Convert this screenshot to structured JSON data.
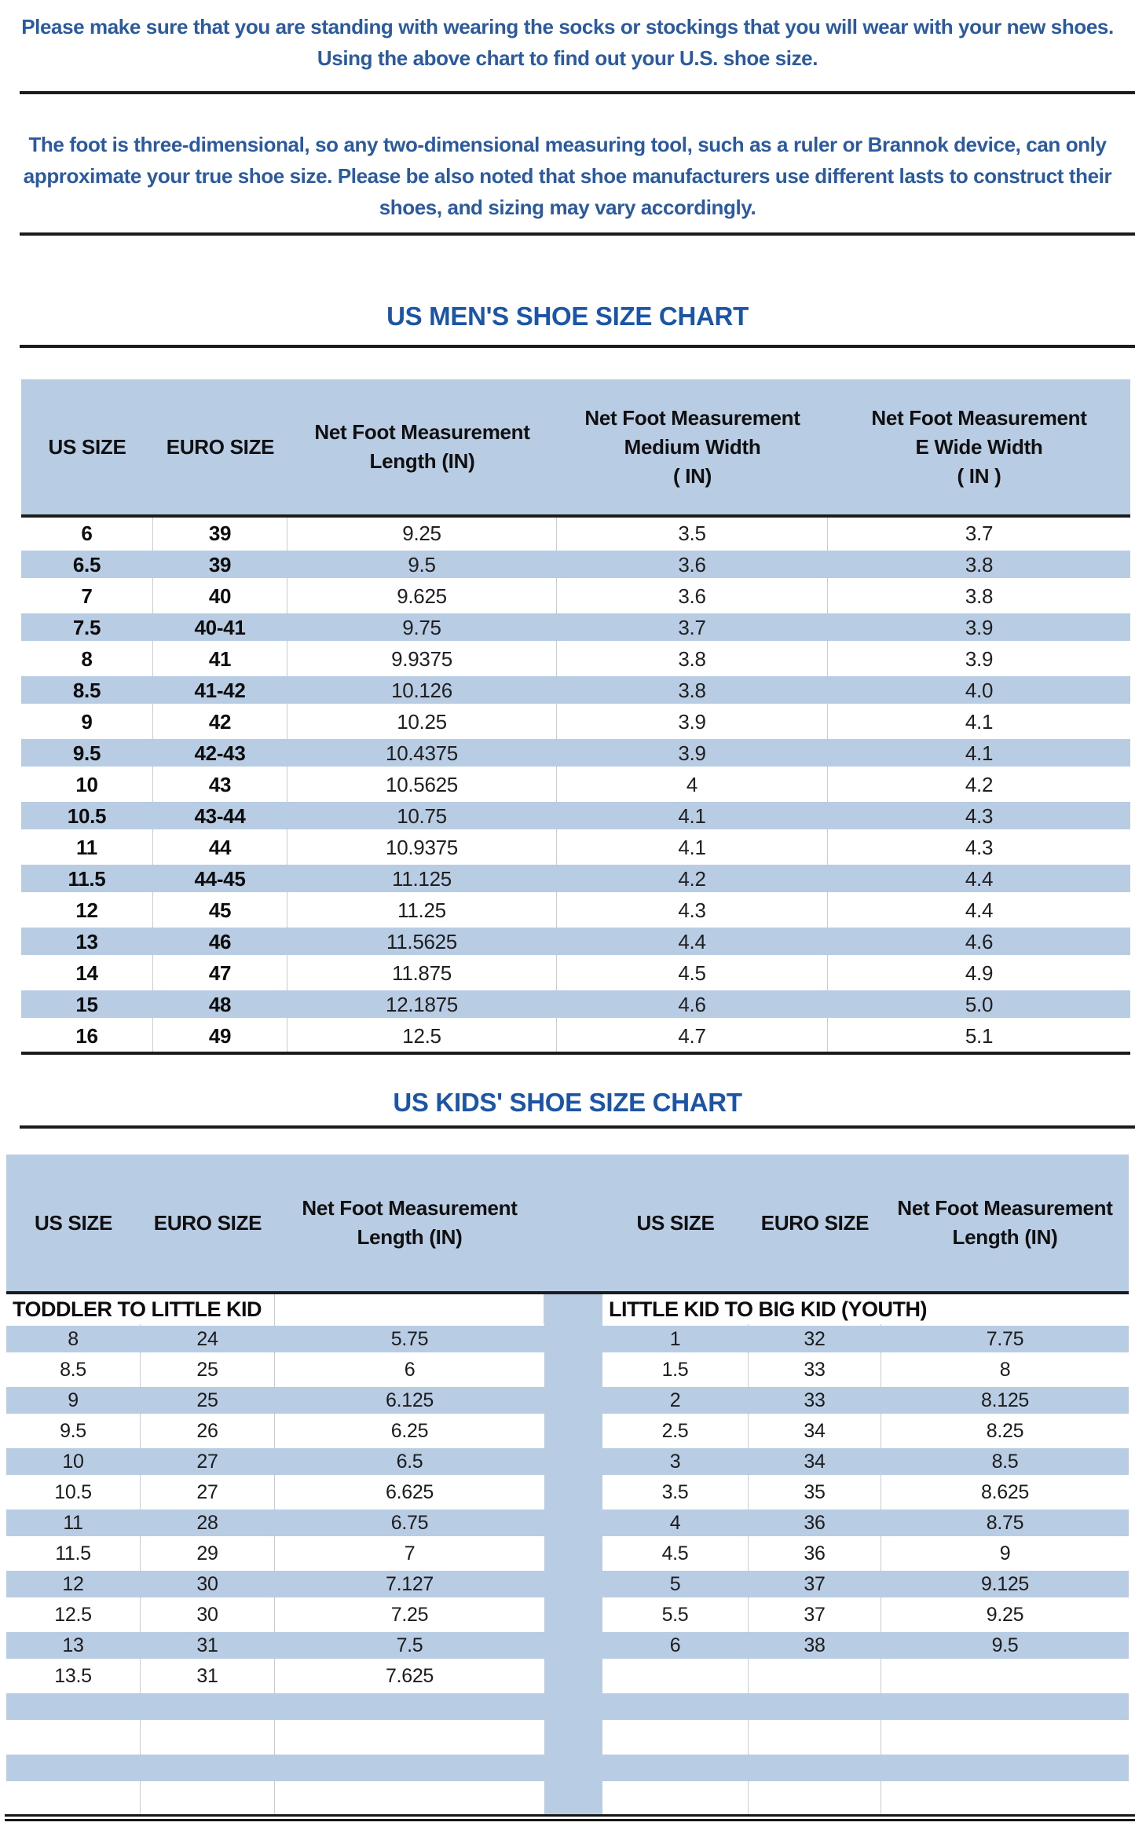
{
  "intro": {
    "para1": "Please make sure that you are standing with wearing the socks or stockings that you will wear with your new shoes.\nUsing the above chart to find out your U.S. shoe size.",
    "para2": "The foot is three-dimensional, so any two-dimensional measuring tool, such as a ruler or Brannok device, can only\napproximate your true shoe size. Please be also noted that shoe manufacturers use different lasts to construct their\nshoes, and sizing may vary accordingly."
  },
  "colors": {
    "table_fill_blue": "#b8cce4",
    "title_blue": "#1d55a6",
    "intro_text_blue": "#2b5b9e",
    "rule_dark": "#1c1c1c"
  },
  "mens_chart": {
    "title": "US MEN'S SHOE SIZE CHART",
    "headers": [
      "US SIZE",
      "EURO SIZE",
      "Net Foot Measurement\nLength (IN)",
      "Net Foot Measurement\nMedium Width\n( IN)",
      "Net Foot Measurement\nE Wide Width\n( IN )"
    ],
    "rows": [
      [
        "6",
        "39",
        "9.25",
        "3.5",
        "3.7"
      ],
      [
        "6.5",
        "39",
        "9.5",
        "3.6",
        "3.8"
      ],
      [
        "7",
        "40",
        "9.625",
        "3.6",
        "3.8"
      ],
      [
        "7.5",
        "40-41",
        "9.75",
        "3.7",
        "3.9"
      ],
      [
        "8",
        "41",
        "9.9375",
        "3.8",
        "3.9"
      ],
      [
        "8.5",
        "41-42",
        "10.126",
        "3.8",
        "4.0"
      ],
      [
        "9",
        "42",
        "10.25",
        "3.9",
        "4.1"
      ],
      [
        "9.5",
        "42-43",
        "10.4375",
        "3.9",
        "4.1"
      ],
      [
        "10",
        "43",
        "10.5625",
        "4",
        "4.2"
      ],
      [
        "10.5",
        "43-44",
        "10.75",
        "4.1",
        "4.3"
      ],
      [
        "11",
        "44",
        "10.9375",
        "4.1",
        "4.3"
      ],
      [
        "11.5",
        "44-45",
        "11.125",
        "4.2",
        "4.4"
      ],
      [
        "12",
        "45",
        "11.25",
        "4.3",
        "4.4"
      ],
      [
        "13",
        "46",
        "11.5625",
        "4.4",
        "4.6"
      ],
      [
        "14",
        "47",
        "11.875",
        "4.5",
        "4.9"
      ],
      [
        "15",
        "48",
        "12.1875",
        "4.6",
        "5.0"
      ],
      [
        "16",
        "49",
        "12.5",
        "4.7",
        "5.1"
      ]
    ]
  },
  "kids_chart": {
    "title": "US KIDS' SHOE SIZE CHART",
    "headers": [
      "US SIZE",
      "EURO SIZE",
      "Net Foot Measurement\nLength (IN)"
    ],
    "left_section": "TODDLER TO LITTLE KID",
    "right_section": "LITTLE KID TO BIG KID (YOUTH)",
    "rows": [
      {
        "left": [
          "8",
          "24",
          "5.75"
        ],
        "right": [
          "1",
          "32",
          "7.75"
        ]
      },
      {
        "left": [
          "8.5",
          "25",
          "6"
        ],
        "right": [
          "1.5",
          "33",
          "8"
        ]
      },
      {
        "left": [
          "9",
          "25",
          "6.125"
        ],
        "right": [
          "2",
          "33",
          "8.125"
        ]
      },
      {
        "left": [
          "9.5",
          "26",
          "6.25"
        ],
        "right": [
          "2.5",
          "34",
          "8.25"
        ]
      },
      {
        "left": [
          "10",
          "27",
          "6.5"
        ],
        "right": [
          "3",
          "34",
          "8.5"
        ]
      },
      {
        "left": [
          "10.5",
          "27",
          "6.625"
        ],
        "right": [
          "3.5",
          "35",
          "8.625"
        ]
      },
      {
        "left": [
          "11",
          "28",
          "6.75"
        ],
        "right": [
          "4",
          "36",
          "8.75"
        ]
      },
      {
        "left": [
          "11.5",
          "29",
          "7"
        ],
        "right": [
          "4.5",
          "36",
          "9"
        ]
      },
      {
        "left": [
          "12",
          "30",
          "7.127"
        ],
        "right": [
          "5",
          "37",
          "9.125"
        ]
      },
      {
        "left": [
          "12.5",
          "30",
          "7.25"
        ],
        "right": [
          "5.5",
          "37",
          "9.25"
        ]
      },
      {
        "left": [
          "13",
          "31",
          "7.5"
        ],
        "right": [
          "6",
          "38",
          "9.5"
        ]
      },
      {
        "left": [
          "13.5",
          "31",
          "7.625"
        ],
        "right": [
          "",
          "",
          ""
        ]
      },
      {
        "left": [
          "",
          "",
          ""
        ],
        "right": [
          "",
          "",
          ""
        ]
      },
      {
        "left": [
          "",
          "",
          ""
        ],
        "right": [
          "",
          "",
          ""
        ]
      },
      {
        "left": [
          "",
          "",
          ""
        ],
        "right": [
          "",
          "",
          ""
        ]
      },
      {
        "left": [
          "",
          "",
          ""
        ],
        "right": [
          "",
          "",
          ""
        ]
      }
    ]
  }
}
